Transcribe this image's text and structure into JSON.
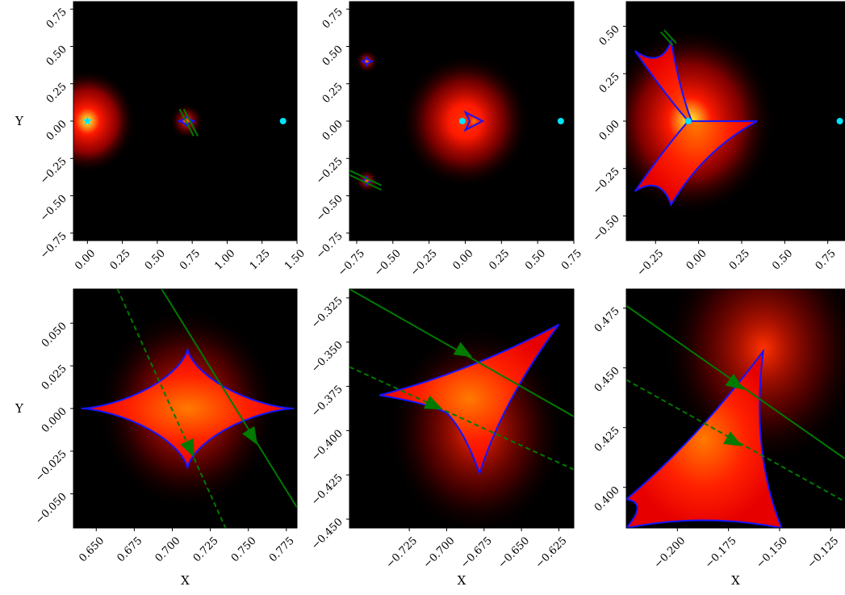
{
  "figure": {
    "background": "#ffffff"
  },
  "colors": {
    "caustic": "#1515ff",
    "trajectory": "#007a00",
    "source_marker": "#00e5ff",
    "lens_marker": "#00e5ff",
    "map_dark": "#000000",
    "map_mid": "#cc0000",
    "map_bright": "#ffff33"
  },
  "chart_data": [
    {
      "type": "heatmap",
      "panel": "top-left",
      "xlabel": "",
      "ylabel": "Y",
      "xlim": [
        -0.1,
        1.5
      ],
      "ylim": [
        -0.8,
        0.8
      ],
      "xticks": [
        "0.00",
        "0.25",
        "0.50",
        "0.75",
        "1.00",
        "1.25",
        "1.50"
      ],
      "xtick_values": [
        0,
        0.25,
        0.5,
        0.75,
        1.0,
        1.25,
        1.5
      ],
      "yticks": [
        "−0.75",
        "−0.50",
        "−0.25",
        "0.00",
        "0.25",
        "0.50",
        "0.75"
      ],
      "ytick_values": [
        -0.75,
        -0.5,
        -0.25,
        0,
        0.25,
        0.5,
        0.75
      ],
      "glows": [
        {
          "x": 0.0,
          "y": 0.0,
          "r": 0.35,
          "intensity": 1.0
        },
        {
          "x": 0.71,
          "y": 0.0,
          "r": 0.12,
          "intensity": 0.45
        }
      ],
      "caustics": [
        {
          "cx": 0.71,
          "cy": 0.0,
          "ax": 0.06,
          "ay": 0.035,
          "shape": "astroid"
        }
      ],
      "trajectories": [
        {
          "style": "solid",
          "from": [
            0.69,
            0.08
          ],
          "to": [
            0.79,
            -0.1
          ]
        },
        {
          "style": "solid",
          "from": [
            0.66,
            0.08
          ],
          "to": [
            0.76,
            -0.1
          ]
        }
      ],
      "points": [
        {
          "x": 1.4,
          "y": 0.0
        }
      ],
      "stars": [
        {
          "x": 0.0,
          "y": 0.0
        }
      ]
    },
    {
      "type": "heatmap",
      "panel": "top-middle",
      "xlabel": "",
      "ylabel": "",
      "xlim": [
        -0.8,
        0.75
      ],
      "ylim": [
        -0.8,
        0.8
      ],
      "xticks": [
        "−0.75",
        "−0.50",
        "−0.25",
        "0.00",
        "0.25",
        "0.50",
        "0.75"
      ],
      "xtick_values": [
        -0.75,
        -0.5,
        -0.25,
        0,
        0.25,
        0.5,
        0.75
      ],
      "yticks": [
        "−0.75",
        "−0.50",
        "−0.25",
        "0.00",
        "0.25",
        "0.50",
        "0.75"
      ],
      "ytick_values": [
        -0.75,
        -0.5,
        -0.25,
        0,
        0.25,
        0.5,
        0.75
      ],
      "glows": [
        {
          "x": 0.0,
          "y": 0.0,
          "r": 0.45,
          "intensity": 0.8
        },
        {
          "x": -0.68,
          "y": 0.4,
          "r": 0.08,
          "intensity": 0.4
        },
        {
          "x": -0.68,
          "y": -0.4,
          "r": 0.08,
          "intensity": 0.4
        }
      ],
      "caustics": [
        {
          "cx": 0.02,
          "cy": 0.0,
          "ax": 0.1,
          "ay": 0.06,
          "shape": "triangle-right"
        },
        {
          "cx": -0.68,
          "cy": 0.4,
          "ax": 0.04,
          "ay": 0.025,
          "shape": "astroid"
        },
        {
          "cx": -0.68,
          "cy": -0.4,
          "ax": 0.04,
          "ay": 0.025,
          "shape": "astroid"
        }
      ],
      "trajectories": [
        {
          "style": "solid",
          "from": [
            -0.8,
            -0.33
          ],
          "to": [
            -0.58,
            -0.43
          ]
        },
        {
          "style": "solid",
          "from": [
            -0.8,
            -0.36
          ],
          "to": [
            -0.58,
            -0.46
          ]
        }
      ],
      "points": [
        {
          "x": 0.66,
          "y": 0.0
        },
        {
          "x": -0.02,
          "y": 0.0
        }
      ],
      "stars": []
    },
    {
      "type": "heatmap",
      "panel": "top-right",
      "xlabel": "",
      "ylabel": "",
      "xlim": [
        -0.42,
        0.85
      ],
      "ylim": [
        -0.63,
        0.63
      ],
      "xticks": [
        "−0.25",
        "0.00",
        "0.25",
        "0.50",
        "0.75"
      ],
      "xtick_values": [
        -0.25,
        0,
        0.25,
        0.5,
        0.75
      ],
      "yticks": [
        "−0.50",
        "−0.25",
        "0.00",
        "0.25",
        "0.50"
      ],
      "ytick_values": [
        -0.5,
        -0.25,
        0,
        0.25,
        0.5
      ],
      "glows": [
        {
          "x": -0.05,
          "y": 0.0,
          "r": 0.5,
          "intensity": 0.9
        }
      ],
      "caustics": [
        {
          "shape": "poly",
          "points": [
            [
              -0.37,
              0.37
            ],
            [
              -0.16,
              0.42
            ],
            [
              -0.04,
              0.0
            ],
            [
              0.34,
              0.0
            ],
            [
              -0.16,
              -0.44
            ],
            [
              -0.37,
              -0.37
            ],
            [
              -0.06,
              0.0
            ]
          ]
        }
      ],
      "trajectories": [
        {
          "style": "solid",
          "from": [
            -0.22,
            0.47
          ],
          "to": [
            -0.15,
            0.4
          ]
        },
        {
          "style": "solid",
          "from": [
            -0.2,
            0.48
          ],
          "to": [
            -0.13,
            0.41
          ]
        }
      ],
      "points": [
        {
          "x": 0.82,
          "y": 0.0
        },
        {
          "x": -0.06,
          "y": 0.0
        }
      ],
      "stars": []
    },
    {
      "type": "heatmap",
      "panel": "bottom-left",
      "xlabel": "X",
      "ylabel": "Y",
      "xlim": [
        0.635,
        0.782
      ],
      "ylim": [
        -0.07,
        0.07
      ],
      "xticks": [
        "0.650",
        "0.675",
        "0.700",
        "0.725",
        "0.750",
        "0.775"
      ],
      "xtick_values": [
        0.65,
        0.675,
        0.7,
        0.725,
        0.75,
        0.775
      ],
      "yticks": [
        "−0.050",
        "−0.025",
        "0.000",
        "0.025",
        "0.050"
      ],
      "ytick_values": [
        -0.05,
        -0.025,
        0,
        0.025,
        0.05
      ],
      "glows": [
        {
          "x": 0.71,
          "y": 0.0,
          "r": 0.06,
          "intensity": 0.5
        }
      ],
      "caustics": [
        {
          "cx": 0.71,
          "cy": 0.0,
          "ax": 0.07,
          "ay": 0.035,
          "shape": "astroid"
        }
      ],
      "trajectories": [
        {
          "style": "solid",
          "from": [
            0.693,
            0.07
          ],
          "to": [
            0.782,
            -0.058
          ],
          "arrow_at": [
            0.753,
            -0.017
          ]
        },
        {
          "style": "dashed",
          "from": [
            0.664,
            0.07
          ],
          "to": [
            0.735,
            -0.07
          ],
          "arrow_at": [
            0.712,
            -0.024
          ]
        }
      ],
      "points": [],
      "stars": []
    },
    {
      "type": "heatmap",
      "panel": "bottom-middle",
      "xlabel": "X",
      "ylabel": "",
      "xlim": [
        -0.765,
        -0.615
      ],
      "ylim": [
        -0.455,
        -0.32
      ],
      "xticks": [
        "−0.725",
        "−0.700",
        "−0.675",
        "−0.650",
        "−0.625"
      ],
      "xtick_values": [
        -0.725,
        -0.7,
        -0.675,
        -0.65,
        -0.625
      ],
      "yticks": [
        "−0.450",
        "−0.425",
        "−0.400",
        "−0.375",
        "−0.350",
        "−0.325"
      ],
      "ytick_values": [
        -0.45,
        -0.425,
        -0.4,
        -0.375,
        -0.35,
        -0.325
      ],
      "glows": [
        {
          "x": -0.68,
          "y": -0.4,
          "r": 0.06,
          "intensity": 0.45
        }
      ],
      "caustics": [
        {
          "shape": "poly",
          "points": [
            [
              -0.745,
              -0.38
            ],
            [
              -0.625,
              -0.34
            ],
            [
              -0.678,
              -0.424
            ],
            [
              -0.7,
              -0.39
            ]
          ]
        }
      ],
      "trajectories": [
        {
          "style": "solid",
          "from": [
            -0.765,
            -0.32
          ],
          "to": [
            -0.615,
            -0.392
          ],
          "arrow_at": [
            -0.688,
            -0.356
          ]
        },
        {
          "style": "dashed",
          "from": [
            -0.765,
            -0.364
          ],
          "to": [
            -0.615,
            -0.422
          ],
          "arrow_at": [
            -0.708,
            -0.386
          ]
        }
      ],
      "points": [],
      "stars": []
    },
    {
      "type": "heatmap",
      "panel": "bottom-right",
      "xlabel": "X",
      "ylabel": "",
      "xlim": [
        -0.225,
        -0.118
      ],
      "ylim": [
        0.383,
        0.483
      ],
      "xticks": [
        "−0.200",
        "−0.175",
        "−0.150",
        "−0.125"
      ],
      "xtick_values": [
        -0.2,
        -0.175,
        -0.15,
        -0.125
      ],
      "yticks": [
        "0.400",
        "0.425",
        "0.450",
        "0.475"
      ],
      "ytick_values": [
        0.4,
        0.425,
        0.45,
        0.475
      ],
      "glows": [
        {
          "x": -0.158,
          "y": 0.458,
          "r": 0.05,
          "intensity": 0.45
        }
      ],
      "caustics": [
        {
          "shape": "poly",
          "points": [
            [
              -0.225,
              0.395
            ],
            [
              -0.158,
              0.457
            ],
            [
              -0.149,
              0.383
            ],
            [
              -0.225,
              0.383
            ]
          ]
        }
      ],
      "trajectories": [
        {
          "style": "solid",
          "from": [
            -0.225,
            0.476
          ],
          "to": [
            -0.118,
            0.412
          ],
          "arrow_at": [
            -0.171,
            0.443
          ]
        },
        {
          "style": "dashed",
          "from": [
            -0.225,
            0.445
          ],
          "to": [
            -0.118,
            0.394
          ],
          "arrow_at": [
            -0.172,
            0.419
          ]
        }
      ],
      "points": [],
      "stars": []
    }
  ]
}
